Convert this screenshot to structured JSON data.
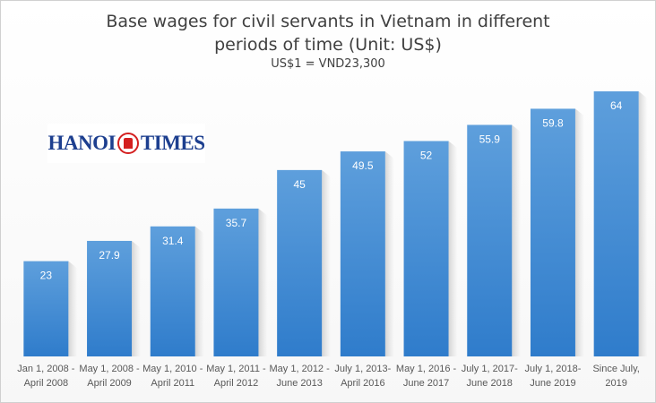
{
  "chart_data": {
    "type": "bar",
    "title": "Base wages for civil servants in Vietnam in different periods of time (Unit: US$)",
    "title_lines": [
      "Base wages for civil servants in Vietnam in different",
      "periods of time (Unit: US$)"
    ],
    "subtitle": "US$1 = VND23,300",
    "logo_text": "HANOI TIMES",
    "categories": [
      [
        "Jan 1, 2008 -",
        "April 2008"
      ],
      [
        "May 1, 2008 -",
        "April 2009"
      ],
      [
        "May 1, 2010 -",
        "April 2011"
      ],
      [
        "May 1, 2011 -",
        "April 2012"
      ],
      [
        "May 1, 2012 -",
        "June 2013"
      ],
      [
        "July 1, 2013-",
        "April 2016"
      ],
      [
        "May 1, 2016 -",
        "June 2017"
      ],
      [
        "July 1, 2017-",
        "June 2018"
      ],
      [
        "July 1, 2018-",
        "June 2019"
      ],
      [
        "Since July,",
        "2019"
      ]
    ],
    "values": [
      23,
      27.9,
      31.4,
      35.7,
      45,
      49.5,
      52,
      55.9,
      59.8,
      64
    ],
    "xlabel": "",
    "ylabel": "",
    "ylim": [
      0,
      85.8
    ],
    "grid": false,
    "colors": {
      "bar_top": "#5e9fdc",
      "bar_bottom": "#2f7ccb",
      "text": "#404040"
    }
  }
}
